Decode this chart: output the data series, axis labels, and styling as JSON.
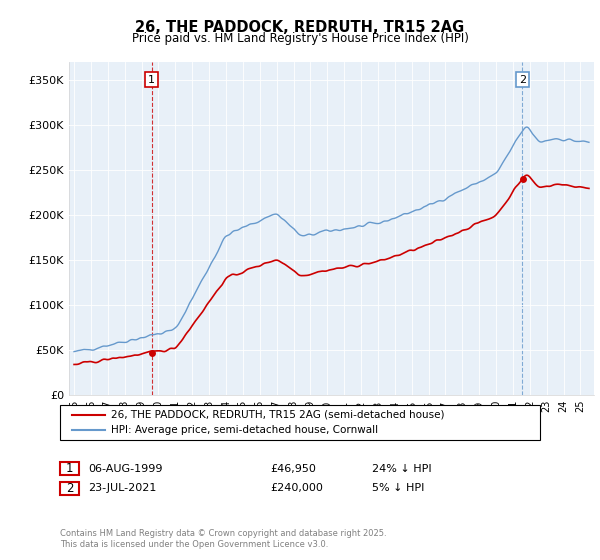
{
  "title": "26, THE PADDOCK, REDRUTH, TR15 2AG",
  "subtitle": "Price paid vs. HM Land Registry's House Price Index (HPI)",
  "legend_line1": "26, THE PADDOCK, REDRUTH, TR15 2AG (semi-detached house)",
  "legend_line2": "HPI: Average price, semi-detached house, Cornwall",
  "footer": "Contains HM Land Registry data © Crown copyright and database right 2025.\nThis data is licensed under the Open Government Licence v3.0.",
  "red_color": "#cc0000",
  "blue_color": "#6699cc",
  "blue_vline_color": "#6699cc",
  "red_vline_color": "#cc0000",
  "bg_color": "#e8f0f8",
  "table_row1": [
    "1",
    "06-AUG-1999",
    "£46,950",
    "24% ↓ HPI"
  ],
  "table_row2": [
    "2",
    "23-JUL-2021",
    "£240,000",
    "5% ↓ HPI"
  ],
  "sale1_year": 1999.6,
  "sale1_price": 46950,
  "sale2_year": 2021.55,
  "sale2_price": 240000,
  "ylim_max": 370000,
  "yticks": [
    0,
    50000,
    100000,
    150000,
    200000,
    250000,
    300000,
    350000
  ],
  "ytick_labels": [
    "£0",
    "£50K",
    "£100K",
    "£150K",
    "£200K",
    "£250K",
    "£300K",
    "£350K"
  ]
}
